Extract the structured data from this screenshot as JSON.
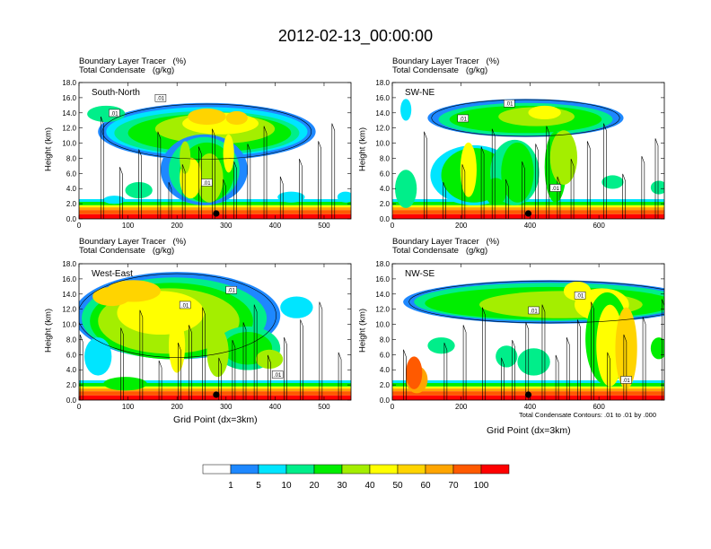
{
  "title": "2012-02-13_00:00:00",
  "contour_note": "Total Condensate Contours: .01 to .01 by .000",
  "contour_label": ".01",
  "shading_colors": [
    "#ffffff",
    "#1e88ff",
    "#00e5ff",
    "#00ee8a",
    "#00ee00",
    "#a4ee00",
    "#ffff00",
    "#ffd400",
    "#ffa500",
    "#ff5a00",
    "#ff0000"
  ],
  "chart_data": [
    {
      "type": "heatmap",
      "panel_label": "South-North",
      "title_line1": "Boundary Layer Tracer   (%)",
      "title_line2": "Total Condensate   (g/kg)",
      "ylabel": "Height (km)",
      "xlabel": "",
      "xlim": [
        0,
        555
      ],
      "ylim": [
        0,
        18
      ],
      "xticks": [
        0,
        100,
        200,
        300,
        400,
        500
      ],
      "yticks": [
        "0.0",
        "2.0",
        "4.0",
        "6.0",
        "8.0",
        "10.0",
        "12.0",
        "14.0",
        "16.0",
        "18.0"
      ],
      "marker_x": 280
    },
    {
      "type": "heatmap",
      "panel_label": "SW-NE",
      "title_line1": "Boundary Layer Tracer   (%)",
      "title_line2": "Total Condensate   (g/kg)",
      "ylabel": "Height (km)",
      "xlabel": "",
      "xlim": [
        0,
        790
      ],
      "ylim": [
        0,
        18
      ],
      "xticks": [
        0,
        200,
        400,
        600
      ],
      "yticks": [
        "0.0",
        "2.0",
        "4.0",
        "6.0",
        "8.0",
        "10.0",
        "12.0",
        "14.0",
        "16.0",
        "18.0"
      ],
      "marker_x": 395
    },
    {
      "type": "heatmap",
      "panel_label": "West-East",
      "title_line1": "Boundary Layer Tracer   (%)",
      "title_line2": "Total Condensate   (g/kg)",
      "ylabel": "Height (km)",
      "xlabel": "Grid Point (dx=3km)",
      "xlim": [
        0,
        555
      ],
      "ylim": [
        0,
        18
      ],
      "xticks": [
        0,
        100,
        200,
        300,
        400,
        500
      ],
      "yticks": [
        "0.0",
        "2.0",
        "4.0",
        "6.0",
        "8.0",
        "10.0",
        "12.0",
        "14.0",
        "16.0",
        "18.0"
      ],
      "marker_x": 280
    },
    {
      "type": "heatmap",
      "panel_label": "NW-SE",
      "title_line1": "Boundary Layer Tracer   (%)",
      "title_line2": "Total Condensate   (g/kg)",
      "ylabel": "Height (km)",
      "xlabel": "Grid Point (dx=3km)",
      "xlim": [
        0,
        790
      ],
      "ylim": [
        0,
        18
      ],
      "xticks": [
        0,
        200,
        400,
        600
      ],
      "yticks": [
        "0.0",
        "2.0",
        "4.0",
        "6.0",
        "8.0",
        "10.0",
        "12.0",
        "14.0",
        "16.0",
        "18.0"
      ],
      "marker_x": 395
    }
  ],
  "colorbar": {
    "labels": [
      "1",
      "5",
      "10",
      "20",
      "30",
      "40",
      "50",
      "60",
      "70",
      "100"
    ]
  }
}
